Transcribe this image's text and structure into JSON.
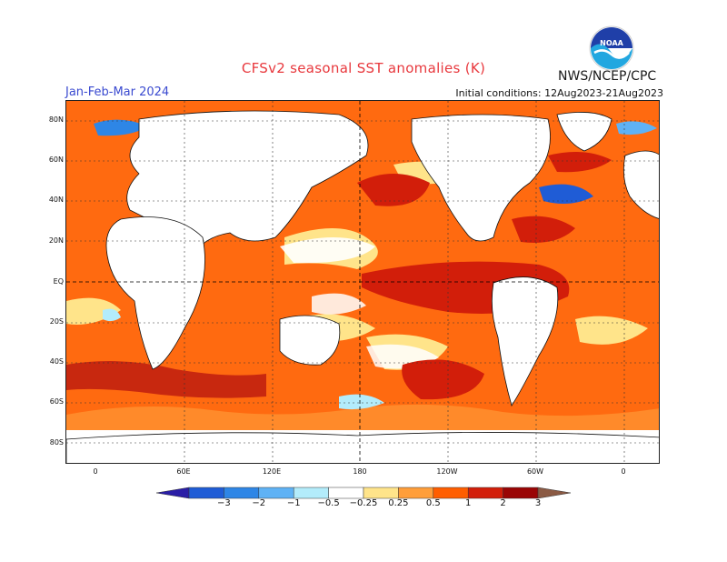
{
  "header": {
    "title": "CFSv2 seasonal SST anomalies (K)",
    "agency": "NWS/NCEP/CPC",
    "season": "Jan-Feb-Mar 2024",
    "initial_conditions": "Initial conditions: 12Aug2023-21Aug2023",
    "logo_text": "NOAA"
  },
  "map": {
    "lat_labels": [
      "80N",
      "60N",
      "40N",
      "20N",
      "EQ",
      "20S",
      "40S",
      "60S",
      "80S"
    ],
    "lon_labels": [
      "0",
      "60E",
      "120E",
      "180",
      "120W",
      "60W",
      "0"
    ]
  },
  "colorbar": {
    "ticks": [
      "−3",
      "−2",
      "−1",
      "−0.5",
      "−0.25",
      "0.25",
      "0.5",
      "1",
      "2",
      "3"
    ],
    "colors": [
      "#2a1ea6",
      "#1f5cd6",
      "#2e86e6",
      "#5fb2f5",
      "#b3ecfb",
      "#ffffff",
      "#ffe48a",
      "#ff9e3a",
      "#ff5e00",
      "#d21e0a",
      "#9a0505",
      "#8b5a44"
    ]
  },
  "colors": {
    "title": "#e8383d",
    "season": "#3a4ad0",
    "land": "#ffffff",
    "warm_strong": "#d21e0a",
    "warm_moderate": "#ff5e00",
    "warm_weak": "#ffe48a",
    "cool": "#1f5cd6"
  }
}
